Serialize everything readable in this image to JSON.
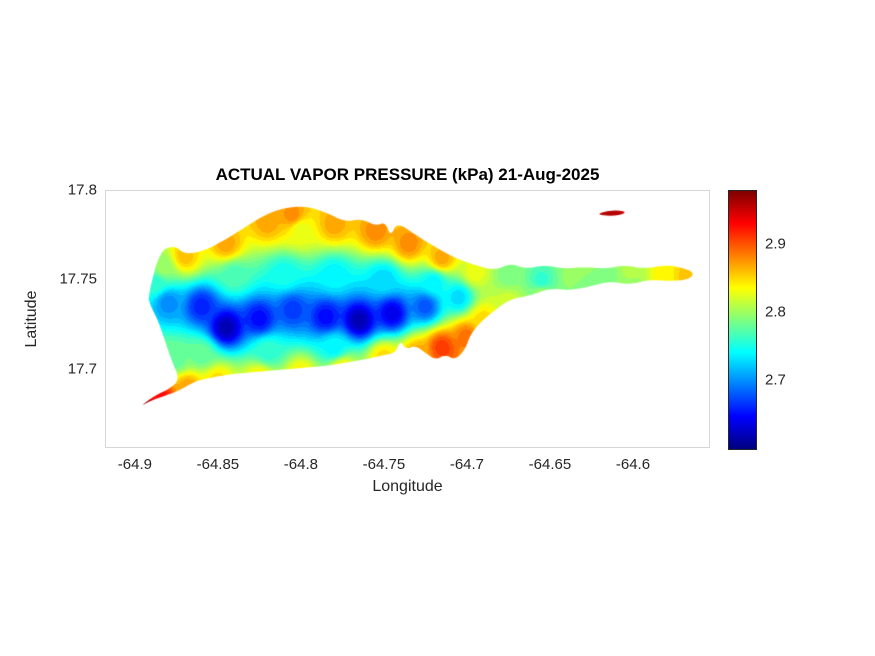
{
  "chart_data": {
    "type": "heatmap",
    "title": "ACTUAL VAPOR PRESSURE (kPa) 21-Aug-2025",
    "xlabel": "Longitude",
    "ylabel": "Latitude",
    "units": "kPa",
    "colormap": "jet",
    "grid": false,
    "xlim": [
      -64.918,
      -64.5536
    ],
    "ylim": [
      17.6558,
      17.8
    ],
    "x_ticks": [
      -64.9,
      -64.85,
      -64.8,
      -64.75,
      -64.7,
      -64.65,
      -64.6
    ],
    "x_tick_labels": [
      "-64.9",
      "-64.85",
      "-64.8",
      "-64.75",
      "-64.7",
      "-64.65",
      "-64.6"
    ],
    "y_ticks": [
      17.7,
      17.75,
      17.8
    ],
    "y_tick_labels": [
      "17.7",
      "17.75",
      "17.8"
    ],
    "color_range": [
      2.6,
      2.98
    ],
    "colorbar_ticks": [
      2.7,
      2.8,
      2.9
    ],
    "colorbar_tick_labels": [
      "2.7",
      "2.8",
      "2.9"
    ],
    "colorbar_position": "right",
    "text_color": "#262626",
    "region": "island-shaped interpolated surface (St. Croix style outline)",
    "island_outline": [
      [
        -64.892,
        17.741
      ],
      [
        -64.885,
        17.766
      ],
      [
        -64.876,
        17.769
      ],
      [
        -64.87,
        17.764
      ],
      [
        -64.858,
        17.766
      ],
      [
        -64.846,
        17.772
      ],
      [
        -64.834,
        17.779
      ],
      [
        -64.822,
        17.786
      ],
      [
        -64.81,
        17.79
      ],
      [
        -64.798,
        17.791
      ],
      [
        -64.786,
        17.788
      ],
      [
        -64.773,
        17.782
      ],
      [
        -64.764,
        17.784
      ],
      [
        -64.755,
        17.78
      ],
      [
        -64.749,
        17.782
      ],
      [
        -64.746,
        17.774
      ],
      [
        -64.742,
        17.782
      ],
      [
        -64.731,
        17.775
      ],
      [
        -64.719,
        17.768
      ],
      [
        -64.707,
        17.762
      ],
      [
        -64.695,
        17.758
      ],
      [
        -64.683,
        17.755
      ],
      [
        -64.674,
        17.759
      ],
      [
        -64.665,
        17.756
      ],
      [
        -64.653,
        17.758
      ],
      [
        -64.641,
        17.756
      ],
      [
        -64.629,
        17.757
      ],
      [
        -64.617,
        17.756
      ],
      [
        -64.605,
        17.758
      ],
      [
        -64.593,
        17.756
      ],
      [
        -64.581,
        17.758
      ],
      [
        -64.572,
        17.757
      ],
      [
        -64.563,
        17.754
      ],
      [
        -64.566,
        17.75
      ],
      [
        -64.578,
        17.749
      ],
      [
        -64.59,
        17.75
      ],
      [
        -64.602,
        17.747
      ],
      [
        -64.614,
        17.749
      ],
      [
        -64.626,
        17.746
      ],
      [
        -64.638,
        17.744
      ],
      [
        -64.65,
        17.745
      ],
      [
        -64.662,
        17.741
      ],
      [
        -64.674,
        17.739
      ],
      [
        -64.683,
        17.733
      ],
      [
        -64.692,
        17.726
      ],
      [
        -64.698,
        17.719
      ],
      [
        -64.701,
        17.711
      ],
      [
        -64.707,
        17.705
      ],
      [
        -64.713,
        17.708
      ],
      [
        -64.719,
        17.705
      ],
      [
        -64.725,
        17.709
      ],
      [
        -64.731,
        17.713
      ],
      [
        -64.737,
        17.711
      ],
      [
        -64.74,
        17.716
      ],
      [
        -64.743,
        17.709
      ],
      [
        -64.749,
        17.708
      ],
      [
        -64.758,
        17.706
      ],
      [
        -64.77,
        17.704
      ],
      [
        -64.782,
        17.702
      ],
      [
        -64.794,
        17.701
      ],
      [
        -64.806,
        17.7
      ],
      [
        -64.819,
        17.699
      ],
      [
        -64.831,
        17.698
      ],
      [
        -64.843,
        17.697
      ],
      [
        -64.855,
        17.695
      ],
      [
        -64.864,
        17.693
      ],
      [
        -64.873,
        17.688
      ],
      [
        -64.882,
        17.685
      ],
      [
        -64.891,
        17.682
      ],
      [
        -64.897,
        17.679
      ],
      [
        -64.888,
        17.685
      ],
      [
        -64.879,
        17.689
      ],
      [
        -64.873,
        17.694
      ],
      [
        -64.878,
        17.705
      ],
      [
        -64.882,
        17.716
      ],
      [
        -64.886,
        17.727
      ],
      [
        -64.891,
        17.736
      ]
    ],
    "islets": [
      [
        [
          -64.623,
          17.7865
        ],
        [
          -64.611,
          17.789
        ],
        [
          -64.603,
          17.7875
        ],
        [
          -64.612,
          17.7852
        ]
      ]
    ],
    "samples": [
      [
        -64.888,
        17.748,
        2.76
      ],
      [
        -64.883,
        17.757,
        2.8
      ],
      [
        -64.87,
        17.763,
        2.86
      ],
      [
        -64.845,
        17.77,
        2.87
      ],
      [
        -64.82,
        17.782,
        2.87
      ],
      [
        -64.805,
        17.786,
        2.88
      ],
      [
        -64.8,
        17.778,
        2.83
      ],
      [
        -64.78,
        17.781,
        2.87
      ],
      [
        -64.755,
        17.777,
        2.88
      ],
      [
        -64.735,
        17.77,
        2.88
      ],
      [
        -64.715,
        17.762,
        2.87
      ],
      [
        -64.695,
        17.754,
        2.83
      ],
      [
        -64.675,
        17.752,
        2.79
      ],
      [
        -64.655,
        17.749,
        2.76
      ],
      [
        -64.635,
        17.752,
        2.8
      ],
      [
        -64.615,
        17.752,
        2.79
      ],
      [
        -64.6,
        17.754,
        2.81
      ],
      [
        -64.582,
        17.752,
        2.84
      ],
      [
        -64.566,
        17.752,
        2.86
      ],
      [
        -64.6,
        17.748,
        2.8
      ],
      [
        -64.63,
        17.746,
        2.79
      ],
      [
        -64.655,
        17.742,
        2.8
      ],
      [
        -64.675,
        17.737,
        2.82
      ],
      [
        -64.69,
        17.727,
        2.85
      ],
      [
        -64.7,
        17.718,
        2.89
      ],
      [
        -64.715,
        17.712,
        2.91
      ],
      [
        -64.73,
        17.708,
        2.87
      ],
      [
        -64.75,
        17.706,
        2.85
      ],
      [
        -64.775,
        17.7,
        2.84
      ],
      [
        -64.8,
        17.697,
        2.84
      ],
      [
        -64.825,
        17.695,
        2.84
      ],
      [
        -64.85,
        17.693,
        2.85
      ],
      [
        -64.868,
        17.69,
        2.87
      ],
      [
        -64.885,
        17.683,
        2.93
      ],
      [
        -64.894,
        17.679,
        2.97
      ],
      [
        -64.88,
        17.737,
        2.7
      ],
      [
        -64.86,
        17.735,
        2.66
      ],
      [
        -64.845,
        17.723,
        2.62
      ],
      [
        -64.825,
        17.728,
        2.65
      ],
      [
        -64.805,
        17.733,
        2.67
      ],
      [
        -64.785,
        17.729,
        2.65
      ],
      [
        -64.765,
        17.727,
        2.62
      ],
      [
        -64.745,
        17.731,
        2.64
      ],
      [
        -64.725,
        17.735,
        2.68
      ],
      [
        -64.705,
        17.74,
        2.73
      ],
      [
        -64.84,
        17.752,
        2.77
      ],
      [
        -64.81,
        17.753,
        2.75
      ],
      [
        -64.78,
        17.752,
        2.74
      ],
      [
        -64.75,
        17.75,
        2.73
      ],
      [
        -64.72,
        17.748,
        2.74
      ],
      [
        -64.875,
        17.705,
        2.78
      ],
      [
        -64.86,
        17.708,
        2.78
      ],
      [
        -64.82,
        17.71,
        2.76
      ],
      [
        -64.78,
        17.712,
        2.74
      ],
      [
        -64.614,
        17.787,
        2.96
      ]
    ]
  }
}
